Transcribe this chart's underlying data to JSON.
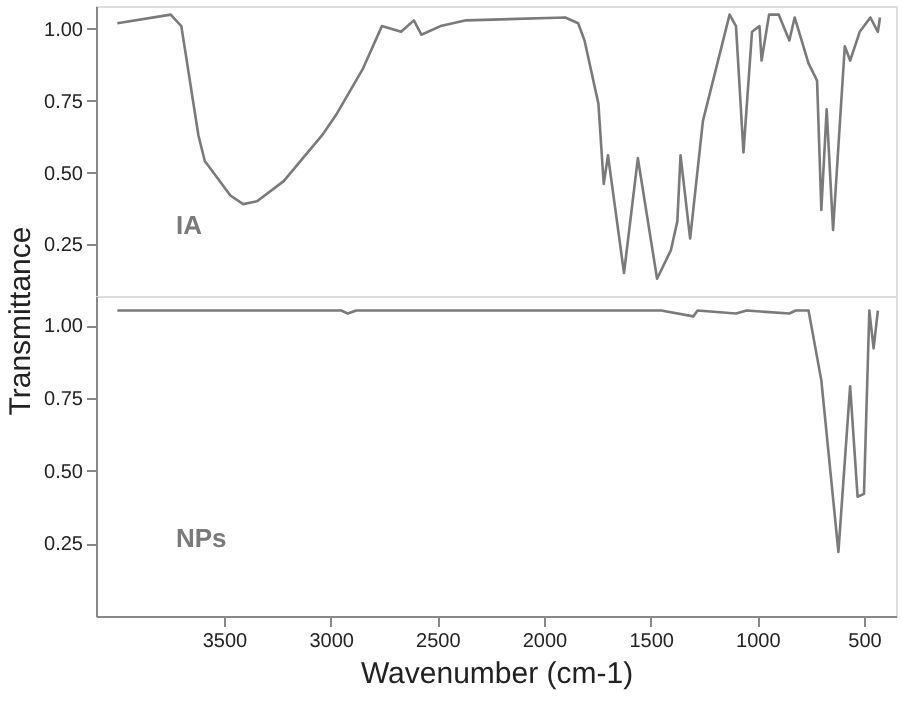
{
  "chart_data": [
    {
      "type": "line",
      "ylabel": "Transmittance",
      "xlim": [
        4100,
        350
      ],
      "ylim": [
        0.07,
        1.08
      ],
      "yticks": [
        {
          "value": 0.25,
          "label": "0.25"
        },
        {
          "value": 0.5,
          "label": "0.50"
        },
        {
          "value": 0.75,
          "label": "0.75"
        },
        {
          "value": 1.0,
          "label": "1.00"
        }
      ],
      "tick_labels": "y",
      "grid": false,
      "x": [
        4000,
        3750,
        3700,
        3620,
        3590,
        3470,
        3410,
        3345,
        3220,
        3040,
        2975,
        2850,
        2760,
        2670,
        2610,
        2575,
        2485,
        2365,
        1900,
        1840,
        1810,
        1745,
        1720,
        1700,
        1625,
        1560,
        1470,
        1405,
        1375,
        1360,
        1315,
        1255,
        1130,
        1100,
        1065,
        1025,
        990,
        980,
        945,
        900,
        850,
        825,
        760,
        720,
        700,
        675,
        645,
        590,
        565,
        520,
        470,
        435,
        425
      ],
      "series": [
        {
          "name": "IA",
          "color": "#7a7a7a",
          "values": [
            1.02,
            1.05,
            1.01,
            0.63,
            0.54,
            0.42,
            0.39,
            0.4,
            0.47,
            0.63,
            0.7,
            0.86,
            1.01,
            0.99,
            1.03,
            0.98,
            1.01,
            1.03,
            1.04,
            1.02,
            0.96,
            0.74,
            0.46,
            0.56,
            0.15,
            0.55,
            0.13,
            0.23,
            0.33,
            0.56,
            0.27,
            0.68,
            1.05,
            1.01,
            0.57,
            0.99,
            1.01,
            0.89,
            1.05,
            1.05,
            0.96,
            1.04,
            0.88,
            0.82,
            0.37,
            0.72,
            0.3,
            0.94,
            0.89,
            0.99,
            1.04,
            0.99,
            1.04
          ]
        }
      ]
    },
    {
      "type": "line",
      "xlabel": "Wavenumber (cm-1)",
      "xlim": [
        4100,
        350
      ],
      "xticks": [
        3500,
        3000,
        2500,
        2000,
        1500,
        1000,
        500
      ],
      "ylim": [
        0,
        1.1
      ],
      "yticks": [
        {
          "value": 0.25,
          "label": "0.25"
        },
        {
          "value": 0.5,
          "label": "0.50"
        },
        {
          "value": 0.75,
          "label": "0.75"
        },
        {
          "value": 1.0,
          "label": "1.00"
        }
      ],
      "grid": false,
      "x": [
        4000,
        2950,
        2920,
        2880,
        1450,
        1300,
        1280,
        1100,
        1050,
        850,
        820,
        760,
        700,
        620,
        565,
        530,
        500,
        475,
        455,
        435
      ],
      "series": [
        {
          "name": "NPs",
          "color": "#7a7a7a",
          "values": [
            1.05,
            1.05,
            1.04,
            1.05,
            1.05,
            1.03,
            1.05,
            1.04,
            1.05,
            1.04,
            1.05,
            1.05,
            0.81,
            0.22,
            0.79,
            0.41,
            0.42,
            1.05,
            0.92,
            1.05
          ]
        }
      ]
    }
  ]
}
